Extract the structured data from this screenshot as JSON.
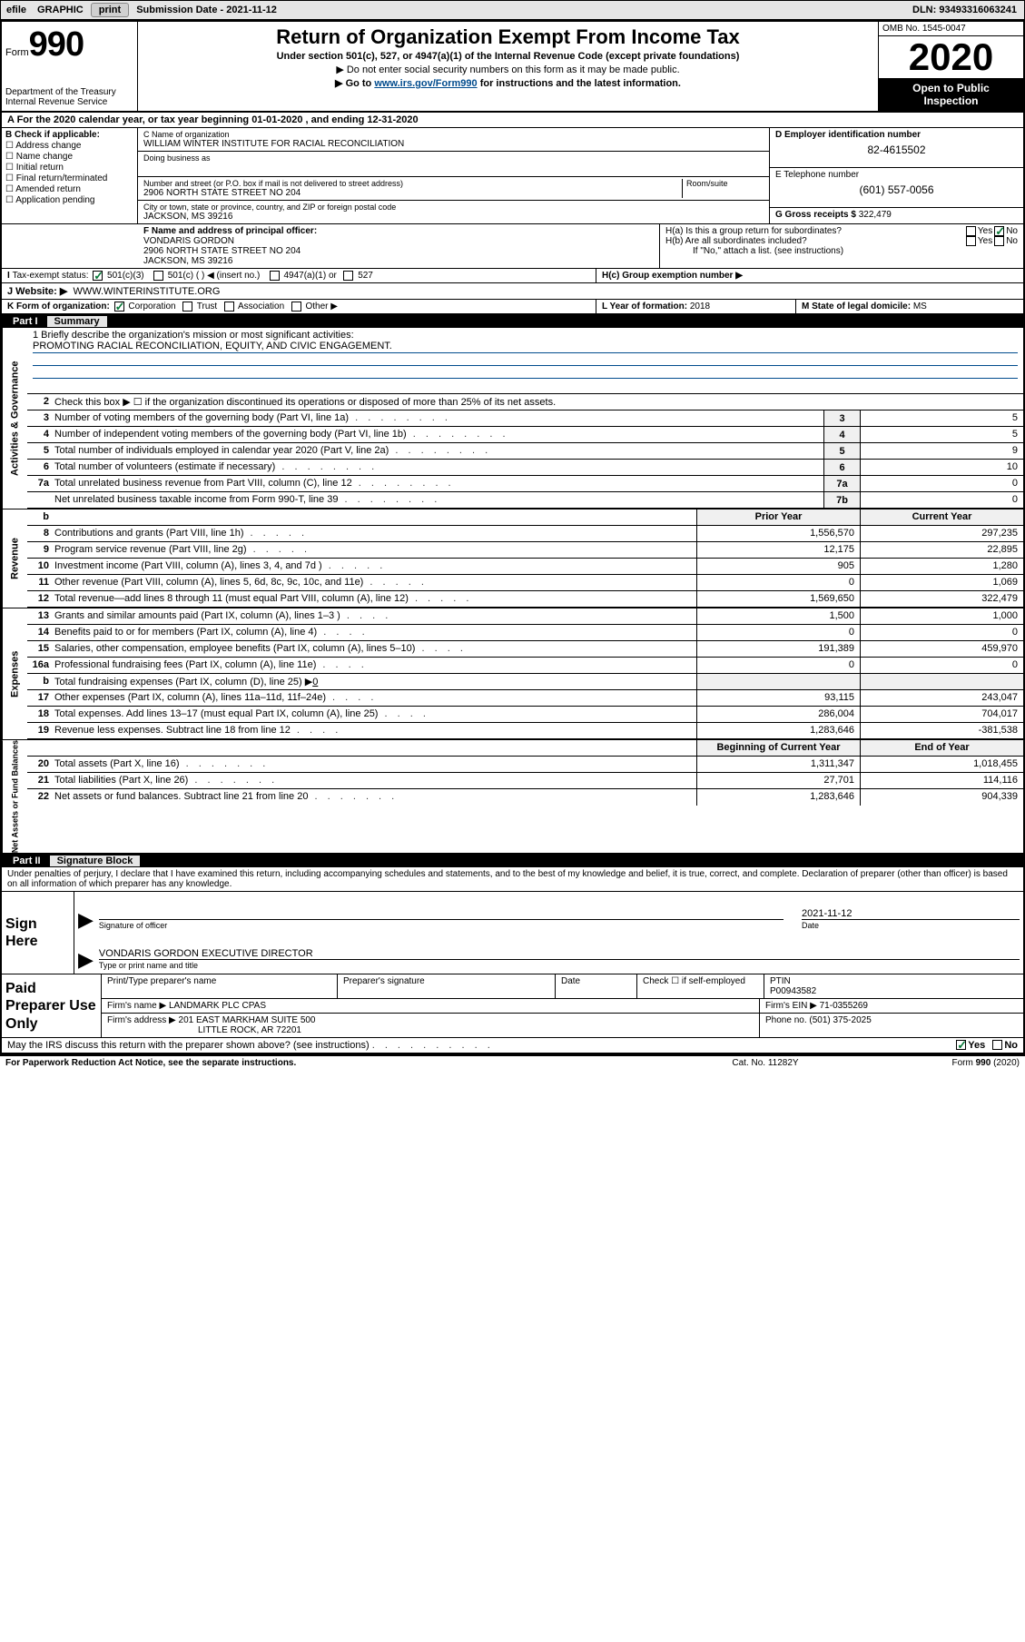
{
  "topbar": {
    "efile": "efile",
    "graphic": "GRAPHIC",
    "print_btn": "print",
    "subdate_label": "Submission Date - ",
    "subdate": "2021-11-12",
    "dln_label": "DLN: ",
    "dln": "93493316063241"
  },
  "header": {
    "form_word": "Form",
    "form_number": "990",
    "dept": "Department of the Treasury",
    "irs": "Internal Revenue Service",
    "title": "Return of Organization Exempt From Income Tax",
    "sub1": "Under section 501(c), 527, or 4947(a)(1) of the Internal Revenue Code (except private foundations)",
    "sub2": "▶ Do not enter social security numbers on this form as it may be made public.",
    "sub3_pre": "▶ Go to ",
    "sub3_link": "www.irs.gov/Form990",
    "sub3_post": " for instructions and the latest information.",
    "omb": "OMB No. 1545-0047",
    "year": "2020",
    "open1": "Open to Public",
    "open2": "Inspection"
  },
  "rowA": {
    "text": "A For the 2020 calendar year, or tax year beginning 01-01-2020    , and ending 12-31-2020"
  },
  "boxB": {
    "title": "B Check if applicable:",
    "items": [
      "Address change",
      "Name change",
      "Initial return",
      "Final return/terminated",
      "Amended return",
      "Application pending"
    ]
  },
  "boxC": {
    "name_label": "C Name of organization",
    "name": "WILLIAM WINTER INSTITUTE FOR RACIAL RECONCILIATION",
    "dba_label": "Doing business as",
    "dba": "",
    "addr_label": "Number and street (or P.O. box if mail is not delivered to street address)",
    "room_label": "Room/suite",
    "addr": "2906 NORTH STATE STREET NO 204",
    "city_label": "City or town, state or province, country, and ZIP or foreign postal code",
    "city": "JACKSON, MS  39216"
  },
  "boxD": {
    "label": "D Employer identification number",
    "value": "82-4615502"
  },
  "boxE": {
    "label": "E Telephone number",
    "value": "(601) 557-0056"
  },
  "boxG": {
    "label": "G Gross receipts $ ",
    "value": "322,479"
  },
  "boxF": {
    "label": "F Name and address of principal officer:",
    "name": "VONDARIS GORDON",
    "addr1": "2906 NORTH STATE STREET NO 204",
    "addr2": "JACKSON, MS  39216"
  },
  "boxH": {
    "a_label": "H(a)  Is this a group return for subordinates?",
    "b_label": "H(b)  Are all subordinates included?",
    "b_note": "If \"No,\" attach a list. (see instructions)",
    "c_label": "H(c)  Group exemption number ▶",
    "yes": "Yes",
    "no": "No"
  },
  "boxI": {
    "label": "Tax-exempt status:",
    "o1": "501(c)(3)",
    "o2": "501(c) (   ) ◀ (insert no.)",
    "o3": "4947(a)(1) or",
    "o4": "527"
  },
  "boxJ": {
    "label": "J   Website: ▶",
    "value": "WWW.WINTERINSTITUTE.ORG"
  },
  "boxK": {
    "label": "K Form of organization:",
    "o1": "Corporation",
    "o2": "Trust",
    "o3": "Association",
    "o4": "Other ▶"
  },
  "boxL": {
    "label": "L Year of formation: ",
    "value": "2018"
  },
  "boxM": {
    "label": "M State of legal domicile: ",
    "value": "MS"
  },
  "partI": {
    "num": "Part I",
    "title": "Summary"
  },
  "mission": {
    "q": "1  Briefly describe the organization's mission or most significant activities:",
    "text": "PROMOTING RACIAL RECONCILIATION, EQUITY, AND CIVIC ENGAGEMENT."
  },
  "line2": "Check this box ▶ ☐  if the organization discontinued its operations or disposed of more than 25% of its net assets.",
  "summary_lines": [
    {
      "n": "3",
      "t": "Number of voting members of the governing body (Part VI, line 1a)",
      "box": "3",
      "v": "5"
    },
    {
      "n": "4",
      "t": "Number of independent voting members of the governing body (Part VI, line 1b)",
      "box": "4",
      "v": "5"
    },
    {
      "n": "5",
      "t": "Total number of individuals employed in calendar year 2020 (Part V, line 2a)",
      "box": "5",
      "v": "9"
    },
    {
      "n": "6",
      "t": "Total number of volunteers (estimate if necessary)",
      "box": "6",
      "v": "10"
    },
    {
      "n": "7a",
      "t": "Total unrelated business revenue from Part VIII, column (C), line 12",
      "box": "7a",
      "v": "0"
    },
    {
      "n": "",
      "t": "Net unrelated business taxable income from Form 990-T, line 39",
      "box": "7b",
      "v": "0"
    }
  ],
  "rev_hdr": {
    "b": "b",
    "prior": "Prior Year",
    "current": "Current Year"
  },
  "revenue": [
    {
      "n": "8",
      "t": "Contributions and grants (Part VIII, line 1h)",
      "p": "1,556,570",
      "c": "297,235"
    },
    {
      "n": "9",
      "t": "Program service revenue (Part VIII, line 2g)",
      "p": "12,175",
      "c": "22,895"
    },
    {
      "n": "10",
      "t": "Investment income (Part VIII, column (A), lines 3, 4, and 7d )",
      "p": "905",
      "c": "1,280"
    },
    {
      "n": "11",
      "t": "Other revenue (Part VIII, column (A), lines 5, 6d, 8c, 9c, 10c, and 11e)",
      "p": "0",
      "c": "1,069"
    },
    {
      "n": "12",
      "t": "Total revenue—add lines 8 through 11 (must equal Part VIII, column (A), line 12)",
      "p": "1,569,650",
      "c": "322,479"
    }
  ],
  "expenses": [
    {
      "n": "13",
      "t": "Grants and similar amounts paid (Part IX, column (A), lines 1–3 )",
      "p": "1,500",
      "c": "1,000"
    },
    {
      "n": "14",
      "t": "Benefits paid to or for members (Part IX, column (A), line 4)",
      "p": "0",
      "c": "0"
    },
    {
      "n": "15",
      "t": "Salaries, other compensation, employee benefits (Part IX, column (A), lines 5–10)",
      "p": "191,389",
      "c": "459,970"
    },
    {
      "n": "16a",
      "t": "Professional fundraising fees (Part IX, column (A), line 11e)",
      "p": "0",
      "c": "0"
    }
  ],
  "exp_b": {
    "n": "b",
    "t_pre": "Total fundraising expenses (Part IX, column (D), line 25) ▶",
    "t_val": "0"
  },
  "expenses2": [
    {
      "n": "17",
      "t": "Other expenses (Part IX, column (A), lines 11a–11d, 11f–24e)",
      "p": "93,115",
      "c": "243,047"
    },
    {
      "n": "18",
      "t": "Total expenses. Add lines 13–17 (must equal Part IX, column (A), line 25)",
      "p": "286,004",
      "c": "704,017"
    },
    {
      "n": "19",
      "t": "Revenue less expenses. Subtract line 18 from line 12",
      "p": "1,283,646",
      "c": "-381,538"
    }
  ],
  "na_hdr": {
    "prior": "Beginning of Current Year",
    "current": "End of Year"
  },
  "netassets": [
    {
      "n": "20",
      "t": "Total assets (Part X, line 16)",
      "p": "1,311,347",
      "c": "1,018,455"
    },
    {
      "n": "21",
      "t": "Total liabilities (Part X, line 26)",
      "p": "27,701",
      "c": "114,116"
    },
    {
      "n": "22",
      "t": "Net assets or fund balances. Subtract line 21 from line 20",
      "p": "1,283,646",
      "c": "904,339"
    }
  ],
  "side_labels": {
    "gov": "Activities & Governance",
    "rev": "Revenue",
    "exp": "Expenses",
    "na": "Net Assets or Fund Balances"
  },
  "partII": {
    "num": "Part II",
    "title": "Signature Block"
  },
  "perjury": "Under penalties of perjury, I declare that I have examined this return, including accompanying schedules and statements, and to the best of my knowledge and belief, it is true, correct, and complete. Declaration of preparer (other than officer) is based on all information of which preparer has any knowledge.",
  "sign": {
    "here": "Sign Here",
    "sig_label": "Signature of officer",
    "date_label": "Date",
    "date": "2021-11-12",
    "name": "VONDARIS GORDON  EXECUTIVE DIRECTOR",
    "name_label": "Type or print name and title"
  },
  "prep": {
    "label": "Paid Preparer Use Only",
    "h1": "Print/Type preparer's name",
    "h2": "Preparer's signature",
    "h3": "Date",
    "h4_pre": "Check ☐ if self-employed",
    "h5": "PTIN",
    "ptin": "P00943582",
    "firm_label": "Firm's name    ▶ ",
    "firm": "LANDMARK PLC CPAS",
    "ein_label": "Firm's EIN ▶ ",
    "ein": "71-0355269",
    "addr_label": "Firm's address ▶ ",
    "addr1": "201 EAST MARKHAM SUITE 500",
    "addr2": "LITTLE ROCK, AR  72201",
    "phone_label": "Phone no. ",
    "phone": "(501) 375-2025"
  },
  "discuss": {
    "q": "May the IRS discuss this return with the preparer shown above? (see instructions)",
    "yes": "Yes",
    "no": "No"
  },
  "footer": {
    "pra": "For Paperwork Reduction Act Notice, see the separate instructions.",
    "cat": "Cat. No. 11282Y",
    "form": "Form 990 (2020)"
  },
  "colors": {
    "link": "#004b8d",
    "check": "#0a7a3a"
  }
}
